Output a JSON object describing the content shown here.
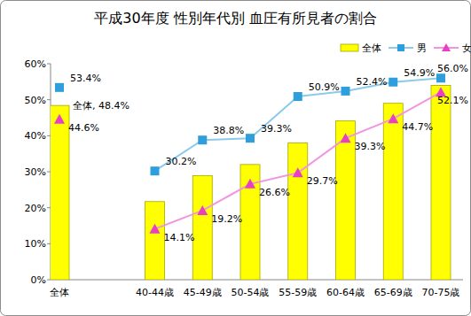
{
  "chart_data": {
    "type": "bar",
    "title": "平成30年度 性別年代別 血圧有所見者の割合",
    "categories": [
      "全体",
      null,
      "40-44歳",
      "45-49歳",
      "50-54歳",
      "55-59歳",
      "60-64歳",
      "65-69歳",
      "70-75歳"
    ],
    "series": [
      {
        "name": "全体",
        "type": "bar",
        "color": "#ffff00",
        "values": [
          48.4,
          null,
          21.7,
          28.9,
          32.0,
          38.0,
          44.1,
          49.0,
          54.0
        ],
        "value_labels": [
          "全体, 48.4%",
          null,
          null,
          null,
          null,
          null,
          null,
          null,
          null
        ]
      },
      {
        "name": "男",
        "type": "line",
        "color": "#2e9fdc",
        "marker": "square",
        "values": [
          53.4,
          null,
          30.2,
          38.8,
          39.3,
          50.9,
          52.4,
          54.9,
          56.0
        ],
        "value_labels": [
          "53.4%",
          null,
          "30.2%",
          "38.8%",
          "39.3%",
          "50.9%",
          "52.4%",
          "54.9%",
          "56.0%"
        ]
      },
      {
        "name": "女",
        "type": "line",
        "color": "#e83fc4",
        "marker": "triangle",
        "values": [
          44.6,
          null,
          14.1,
          19.2,
          26.6,
          29.7,
          39.3,
          44.7,
          52.1
        ],
        "value_labels": [
          "44.6%",
          null,
          "14.1%",
          "19.2%",
          "26.6%",
          "29.7%",
          "39.3%",
          "44.7%",
          "52.1%"
        ]
      }
    ],
    "ylim": [
      0,
      60
    ],
    "yticks": [
      {
        "value": 0,
        "label": "0%"
      },
      {
        "value": 10,
        "label": "10%"
      },
      {
        "value": 20,
        "label": "20%"
      },
      {
        "value": 30,
        "label": "30%"
      },
      {
        "value": 40,
        "label": "40%"
      },
      {
        "value": 50,
        "label": "50%"
      },
      {
        "value": 60,
        "label": "60%"
      }
    ],
    "grid": false,
    "legend": "top-right",
    "data_labels": true
  }
}
